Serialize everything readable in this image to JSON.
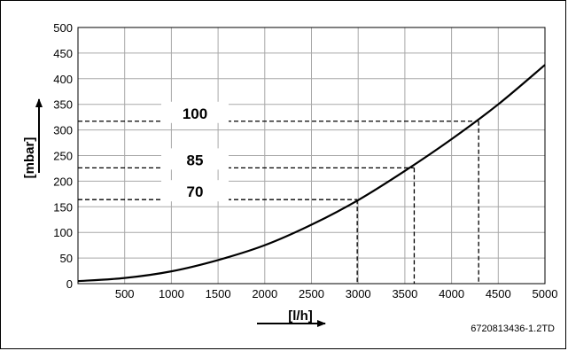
{
  "chart_data": {
    "type": "line",
    "title": "",
    "xlabel": "[l/h]",
    "ylabel": "[mbar]",
    "xlim": [
      0,
      5000
    ],
    "ylim": [
      0,
      500
    ],
    "x_ticks": [
      0,
      500,
      1000,
      1500,
      2000,
      2500,
      3000,
      3500,
      4000,
      4500,
      5000
    ],
    "y_ticks": [
      0,
      50,
      100,
      150,
      200,
      250,
      300,
      350,
      400,
      450,
      500
    ],
    "grid": true,
    "series": [
      {
        "x": [
          0,
          500,
          1000,
          1500,
          2000,
          2500,
          3000,
          3500,
          4000,
          4500,
          5000
        ],
        "y": [
          5,
          11,
          24,
          46,
          75,
          115,
          163,
          220,
          282,
          350,
          427
        ]
      }
    ],
    "annotations": [
      {
        "label": "100",
        "x": 4290,
        "y": 317
      },
      {
        "label": "85",
        "x": 3600,
        "y": 226
      },
      {
        "label": "70",
        "x": 2990,
        "y": 164
      }
    ],
    "figure_code": "6720813436-1.2TD"
  }
}
